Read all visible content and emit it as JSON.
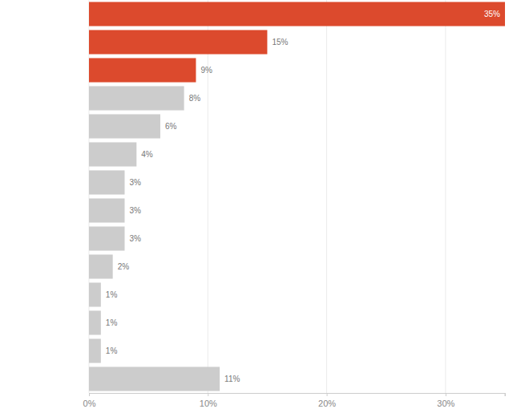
{
  "chart_data": {
    "type": "bar",
    "orientation": "horizontal",
    "categories": [
      null,
      null,
      null,
      null,
      null,
      null,
      null,
      null,
      null,
      null,
      null,
      null,
      null,
      null
    ],
    "values": [
      35,
      15,
      9,
      8,
      6,
      4,
      3,
      3,
      3,
      2,
      1,
      1,
      1,
      11
    ],
    "value_labels": [
      "35%",
      "15%",
      "9%",
      "8%",
      "6%",
      "4%",
      "3%",
      "3%",
      "3%",
      "2%",
      "1%",
      "1%",
      "1%",
      "11%"
    ],
    "colors": [
      "#dc4a2d",
      "#dc4a2d",
      "#dc4a2d",
      "#cccccc",
      "#cccccc",
      "#cccccc",
      "#cccccc",
      "#cccccc",
      "#cccccc",
      "#cccccc",
      "#cccccc",
      "#cccccc",
      "#cccccc",
      "#cccccc"
    ],
    "xlim": [
      0,
      35
    ],
    "xticks": [
      {
        "value": 0,
        "label": "0%"
      },
      {
        "value": 10,
        "label": "10%"
      },
      {
        "value": 20,
        "label": "20%"
      },
      {
        "value": 30,
        "label": "30%"
      }
    ],
    "grid": true,
    "data_labels": true,
    "tick_labels": "x"
  }
}
